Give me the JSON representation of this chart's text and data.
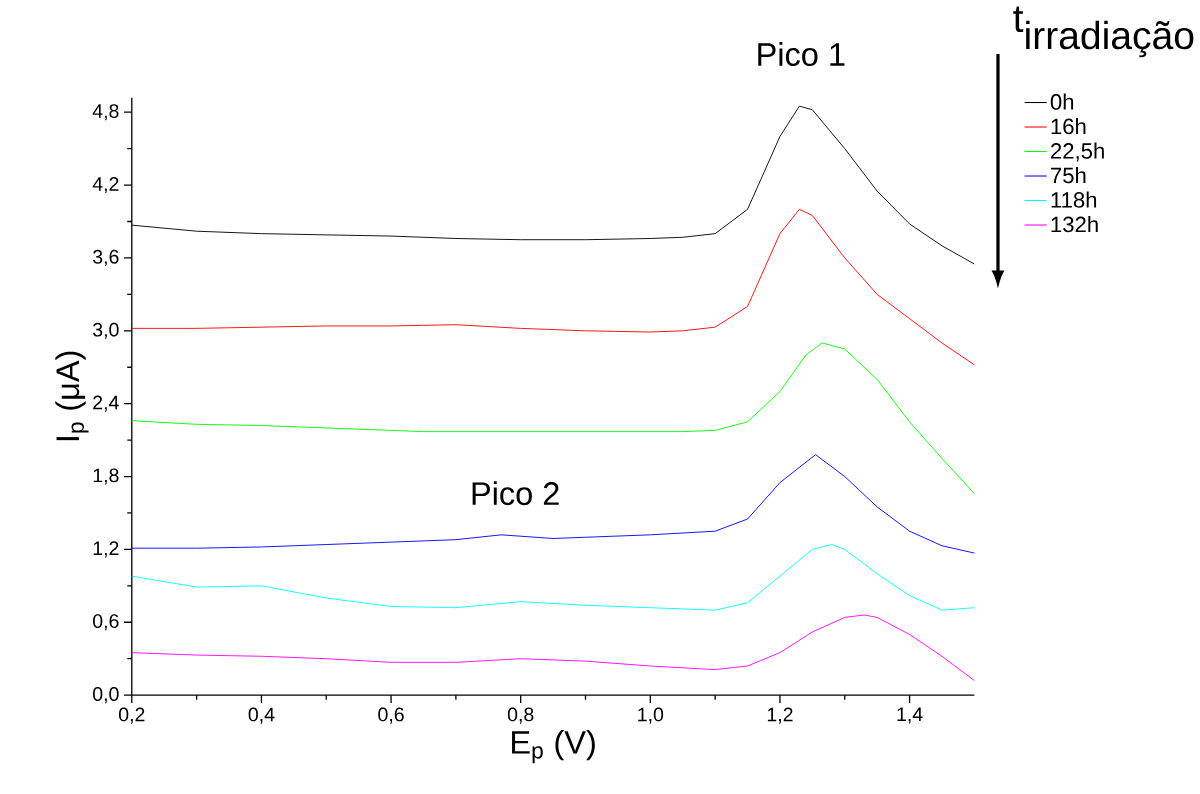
{
  "chart_data": {
    "type": "line",
    "xlabel": "E$_{p}$ (V)",
    "ylabel": "I$_{p}$ (μA)",
    "legend_title": "\\mbox{t}_{\\mbox{irradiação}}",
    "legend": "top right",
    "grid": false,
    "marker": "none",
    "line_style": "solid",
    "xlim": [
      0.2,
      1.5
    ],
    "ylim": [
      0,
      4.92
    ],
    "xticks": [
      {
        "value": 0.2,
        "label": "0,2"
      },
      {
        "value": 0.4,
        "label": "0,4"
      },
      {
        "value": 0.6,
        "label": "0,6"
      },
      {
        "value": 0.8,
        "label": "0,8"
      },
      {
        "value": 1.0,
        "label": "1,0"
      },
      {
        "value": 1.2,
        "label": "1,2"
      },
      {
        "value": 1.4,
        "label": "1,4"
      }
    ],
    "yticks": [
      {
        "value": 0,
        "label": "0,0"
      },
      {
        "value": 0.6,
        "label": "0,6"
      },
      {
        "value": 1.2,
        "label": "1,2"
      },
      {
        "value": 1.8,
        "label": "1,8"
      },
      {
        "value": 2.4,
        "label": "2,4"
      },
      {
        "value": 3.0,
        "label": "3,0"
      },
      {
        "value": 3.6,
        "label": "3,6"
      },
      {
        "value": 4.2,
        "label": "4,2"
      },
      {
        "value": 4.8,
        "label": "4,8"
      }
    ],
    "annotations": [
      "Pico 1",
      "Pico 2"
    ],
    "series": [
      {
        "name": "0h",
        "color": "#000000",
        "x": [
          0.2,
          0.3,
          0.4,
          0.5,
          0.6,
          0.7,
          0.8,
          0.9,
          1.0,
          1.05,
          1.1,
          1.15,
          1.2,
          1.23,
          1.25,
          1.3,
          1.35,
          1.4,
          1.45,
          1.5
        ],
        "values": [
          3.87,
          3.82,
          3.8,
          3.79,
          3.78,
          3.76,
          3.75,
          3.75,
          3.76,
          3.77,
          3.8,
          4.0,
          4.6,
          4.85,
          4.82,
          4.5,
          4.15,
          3.88,
          3.7,
          3.55
        ]
      },
      {
        "name": "16h",
        "color": "#ff0000",
        "x": [
          0.2,
          0.3,
          0.4,
          0.5,
          0.6,
          0.7,
          0.8,
          0.9,
          1.0,
          1.05,
          1.1,
          1.15,
          1.2,
          1.23,
          1.25,
          1.3,
          1.35,
          1.4,
          1.45,
          1.5
        ],
        "values": [
          3.02,
          3.02,
          3.03,
          3.04,
          3.04,
          3.05,
          3.02,
          3.0,
          2.99,
          3.0,
          3.03,
          3.2,
          3.8,
          4.0,
          3.95,
          3.6,
          3.3,
          3.1,
          2.9,
          2.72
        ]
      },
      {
        "name": "22,5h",
        "color": "#00ff00",
        "x": [
          0.2,
          0.3,
          0.4,
          0.5,
          0.6,
          0.65,
          0.7,
          0.8,
          0.9,
          1.0,
          1.05,
          1.1,
          1.15,
          1.2,
          1.24,
          1.265,
          1.3,
          1.35,
          1.4,
          1.45,
          1.5
        ],
        "values": [
          2.26,
          2.23,
          2.22,
          2.2,
          2.18,
          2.17,
          2.17,
          2.17,
          2.17,
          2.17,
          2.17,
          2.18,
          2.25,
          2.5,
          2.8,
          2.9,
          2.85,
          2.6,
          2.25,
          1.95,
          1.66
        ]
      },
      {
        "name": "75h",
        "color": "#0000ff",
        "x": [
          0.2,
          0.3,
          0.4,
          0.5,
          0.6,
          0.7,
          0.77,
          0.85,
          0.9,
          1.0,
          1.1,
          1.15,
          1.2,
          1.255,
          1.3,
          1.35,
          1.4,
          1.45,
          1.5
        ],
        "values": [
          1.21,
          1.21,
          1.22,
          1.24,
          1.26,
          1.28,
          1.32,
          1.29,
          1.3,
          1.32,
          1.35,
          1.45,
          1.75,
          1.98,
          1.8,
          1.55,
          1.35,
          1.23,
          1.17
        ]
      },
      {
        "name": "118h",
        "color": "#00ffff",
        "x": [
          0.2,
          0.3,
          0.4,
          0.5,
          0.6,
          0.7,
          0.8,
          0.9,
          1.0,
          1.1,
          1.15,
          1.2,
          1.25,
          1.28,
          1.3,
          1.35,
          1.4,
          1.45,
          1.5
        ],
        "values": [
          0.98,
          0.89,
          0.9,
          0.8,
          0.73,
          0.72,
          0.77,
          0.74,
          0.72,
          0.7,
          0.76,
          0.98,
          1.2,
          1.24,
          1.2,
          1.0,
          0.82,
          0.7,
          0.72
        ]
      },
      {
        "name": "132h",
        "color": "#ff00ff",
        "x": [
          0.2,
          0.3,
          0.4,
          0.5,
          0.6,
          0.7,
          0.8,
          0.9,
          1.0,
          1.1,
          1.15,
          1.2,
          1.25,
          1.3,
          1.33,
          1.35,
          1.4,
          1.45,
          1.5
        ],
        "values": [
          0.35,
          0.33,
          0.32,
          0.3,
          0.27,
          0.27,
          0.3,
          0.28,
          0.24,
          0.21,
          0.24,
          0.35,
          0.52,
          0.64,
          0.66,
          0.64,
          0.5,
          0.32,
          0.12
        ]
      }
    ]
  }
}
